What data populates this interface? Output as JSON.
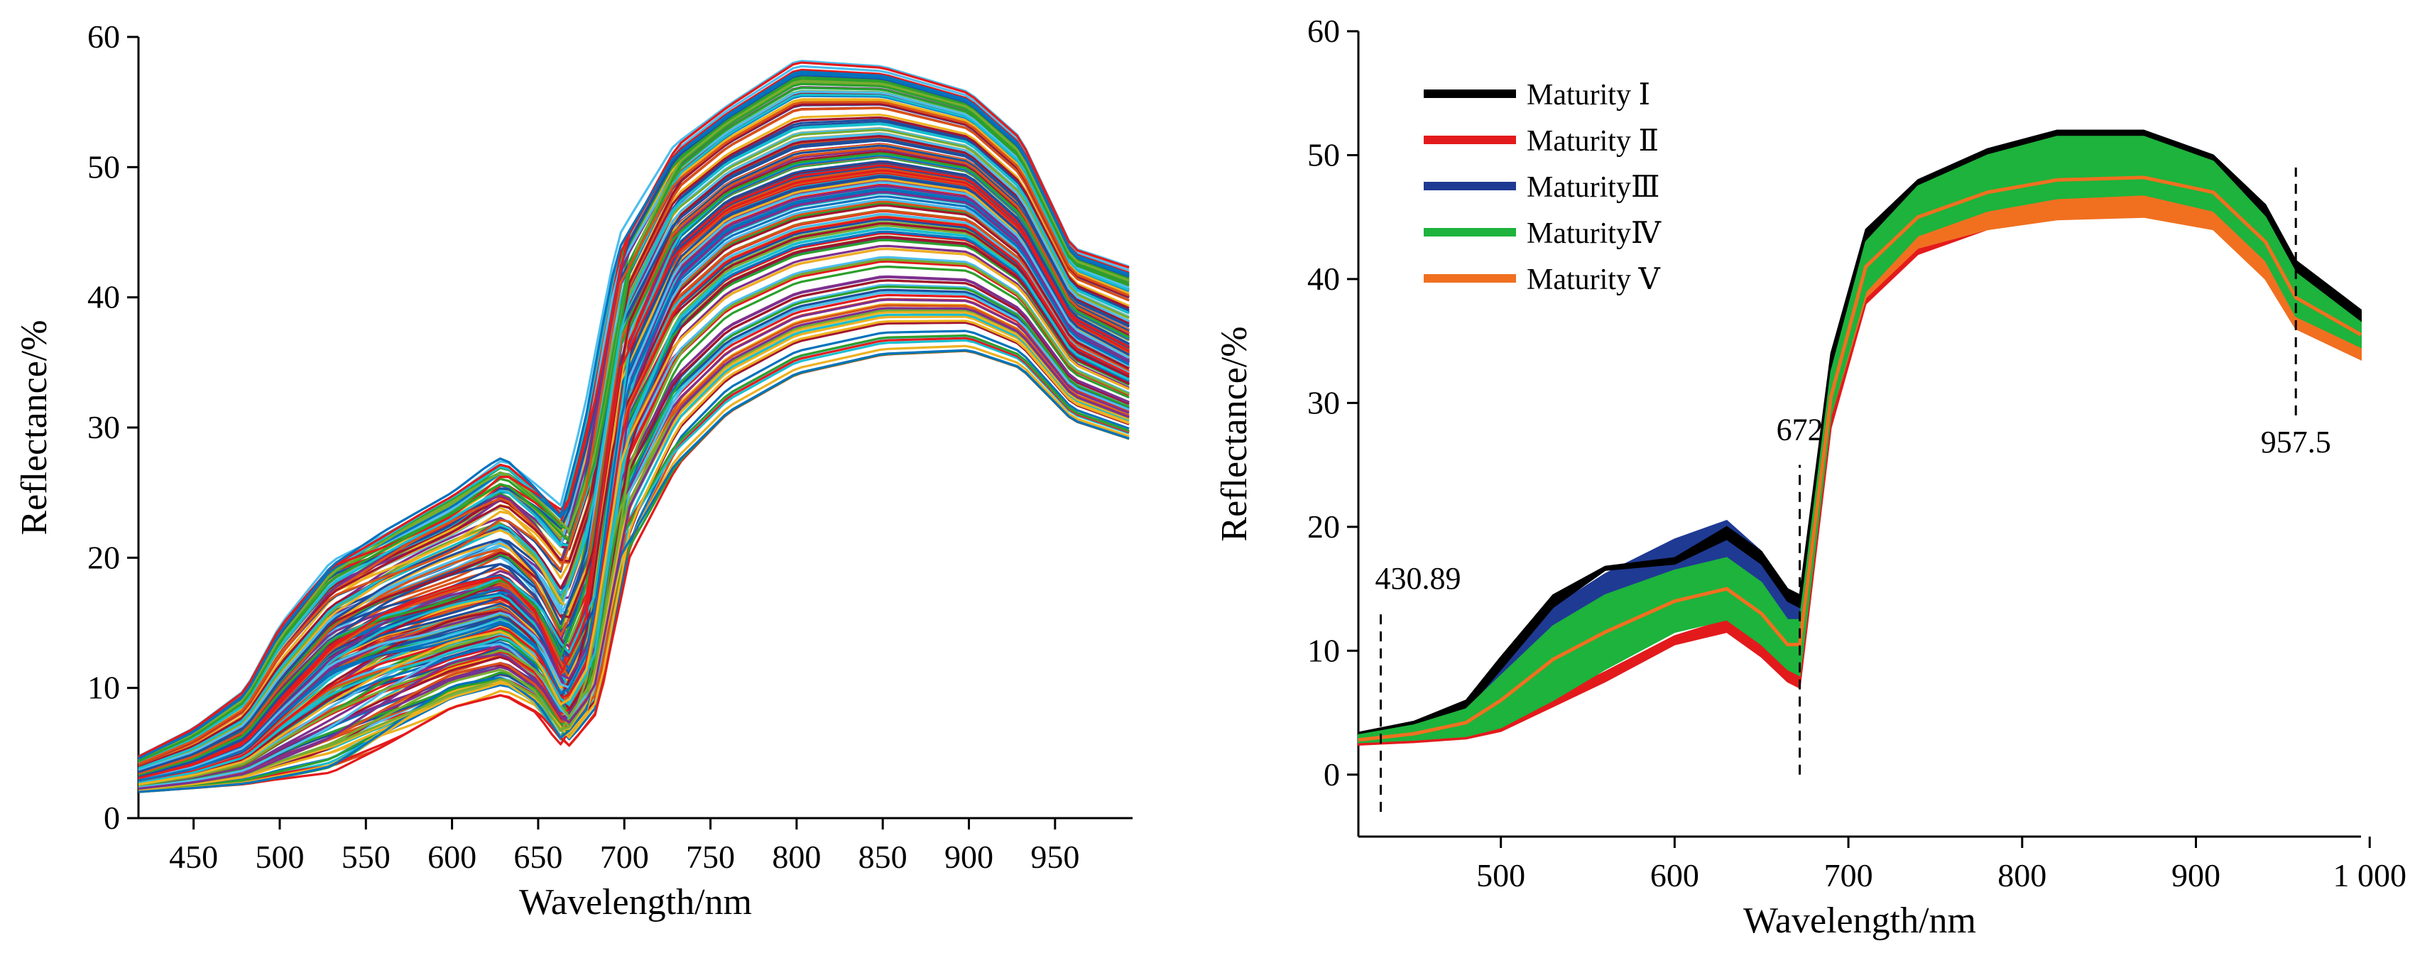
{
  "chart_data": [
    {
      "type": "line",
      "xlabel": "Wavelength/nm",
      "ylabel": "Reflectance/%",
      "xlim": [
        418,
        995
      ],
      "ylim": [
        0,
        60
      ],
      "xticks": [
        450,
        500,
        550,
        600,
        650,
        700,
        750,
        800,
        850,
        900,
        950
      ],
      "yticks": [
        0,
        10,
        20,
        30,
        40,
        50,
        60
      ],
      "grid": false,
      "series_count_approx": 200,
      "x": [
        418,
        450,
        480,
        500,
        530,
        560,
        600,
        630,
        650,
        665,
        680,
        700,
        730,
        760,
        800,
        850,
        900,
        930,
        960,
        995
      ],
      "envelope": {
        "median": [
          3.0,
          4.0,
          5.6,
          8.5,
          12.5,
          14.5,
          16.0,
          17.0,
          14.5,
          10.0,
          14.0,
          34.0,
          43.0,
          46.5,
          48.5,
          49.5,
          48.5,
          45.0,
          38.0,
          35.5
        ],
        "upper": [
          4.8,
          7.0,
          10.0,
          15.0,
          20.0,
          22.0,
          25.0,
          28.0,
          26.0,
          24.5,
          32.0,
          45.0,
          52.0,
          55.0,
          58.5,
          58.0,
          56.0,
          52.5,
          44.0,
          42.5
        ],
        "lower": [
          2.0,
          2.3,
          2.6,
          3.0,
          3.5,
          5.5,
          8.5,
          9.5,
          8.0,
          5.5,
          8.0,
          20.0,
          27.0,
          31.0,
          34.0,
          35.5,
          35.8,
          34.5,
          30.5,
          29.0
        ]
      },
      "palette": [
        "#0072BD",
        "#D95319",
        "#EDB120",
        "#7E2F8E",
        "#77AC30",
        "#4DBEEE",
        "#A2142F",
        "#E41A1C",
        "#1F4E9E",
        "#2CA02C",
        "#17BECF"
      ]
    },
    {
      "type": "area",
      "xlabel": "Wavelength/nm",
      "ylabel": "Reflectance/%",
      "xlim": [
        418,
        995
      ],
      "ylim": [
        -5,
        60
      ],
      "xticks": [
        500,
        600,
        700,
        800,
        900,
        1000
      ],
      "xtick_labels": [
        "500",
        "600",
        "700",
        "800",
        "900",
        "1 000"
      ],
      "yticks": [
        0,
        10,
        20,
        30,
        40,
        50,
        60
      ],
      "grid": false,
      "legend_position": "top-left",
      "x": [
        418,
        450,
        480,
        500,
        530,
        560,
        600,
        630,
        650,
        665,
        672,
        690,
        710,
        740,
        780,
        820,
        870,
        910,
        940,
        957.5,
        995
      ],
      "series": [
        {
          "name": "Maturity Ⅰ",
          "color": "#000000",
          "band": "upper",
          "lower": [
            3.0,
            3.6,
            5.2,
            8.5,
            13.5,
            16.5,
            17.0,
            19.0,
            17.0,
            14.0,
            13.5,
            32.0,
            42.0,
            46.5,
            49.5,
            51.5,
            51.5,
            49.5,
            45.0,
            40.5,
            36.5
          ],
          "upper": [
            3.4,
            4.3,
            6.0,
            9.5,
            14.5,
            16.8,
            17.5,
            20.0,
            18.0,
            15.0,
            14.5,
            34.0,
            44.0,
            48.0,
            50.5,
            52.0,
            52.0,
            50.0,
            46.0,
            41.5,
            37.5
          ]
        },
        {
          "name": "Maturity Ⅱ",
          "color": "#E31A1C",
          "band": "lower",
          "lower": [
            2.4,
            2.6,
            2.9,
            3.5,
            5.5,
            7.5,
            10.5,
            11.5,
            9.5,
            7.5,
            7.0,
            28.0,
            38.0,
            42.0,
            44.0,
            45.0,
            45.5,
            44.5,
            40.0,
            36.0,
            33.5
          ],
          "upper": [
            2.9,
            3.1,
            3.5,
            4.4,
            6.3,
            8.3,
            11.2,
            12.5,
            10.5,
            8.5,
            8.0,
            29.5,
            39.5,
            43.5,
            45.5,
            46.5,
            46.8,
            46.0,
            41.5,
            37.5,
            35.0
          ]
        },
        {
          "name": "MaturityⅢ",
          "color": "#1F3A93",
          "band": "outer",
          "lower": [
            2.6,
            2.8,
            3.1,
            3.8,
            6.5,
            9.0,
            12.5,
            13.5,
            11.5,
            9.5,
            9.0,
            30.0,
            40.0,
            45.0,
            48.0,
            50.0,
            50.0,
            48.0,
            43.5,
            39.0,
            35.0
          ],
          "upper": [
            3.3,
            4.3,
            5.8,
            9.0,
            13.5,
            16.2,
            19.0,
            20.5,
            18.0,
            14.5,
            14.0,
            33.5,
            44.0,
            48.0,
            50.5,
            52.0,
            52.0,
            50.0,
            45.5,
            41.0,
            37.0
          ]
        },
        {
          "name": "MaturityⅣ",
          "color": "#1DB33C",
          "band": "middle",
          "lower": [
            2.6,
            2.8,
            3.1,
            3.8,
            6.0,
            8.5,
            11.5,
            12.5,
            10.5,
            8.5,
            8.0,
            29.0,
            39.0,
            43.5,
            45.5,
            46.5,
            46.8,
            45.5,
            41.5,
            37.0,
            34.5
          ],
          "upper": [
            3.2,
            4.0,
            5.3,
            8.0,
            12.0,
            14.5,
            16.5,
            17.5,
            15.5,
            12.5,
            12.5,
            32.5,
            43.0,
            47.5,
            50.0,
            51.5,
            51.5,
            49.5,
            45.0,
            40.5,
            36.5
          ]
        },
        {
          "name": "Maturity Ⅴ",
          "color": "#F07020",
          "band": "center",
          "mean": [
            2.8,
            3.3,
            4.2,
            6.0,
            9.3,
            11.5,
            14.0,
            15.0,
            13.0,
            10.5,
            10.5,
            30.5,
            41.0,
            45.0,
            47.0,
            48.0,
            48.2,
            47.0,
            43.0,
            38.5,
            35.5
          ],
          "lower": [
            2.6,
            2.8,
            3.1,
            3.8,
            6.2,
            8.7,
            11.7,
            12.7,
            10.7,
            8.7,
            8.2,
            29.0,
            38.5,
            42.5,
            44.0,
            44.8,
            45.0,
            44.0,
            40.0,
            36.0,
            33.5
          ],
          "upper": [
            2.9,
            3.4,
            4.4,
            6.3,
            9.6,
            11.8,
            14.3,
            15.3,
            13.3,
            10.8,
            10.8,
            30.8,
            41.3,
            45.3,
            47.3,
            48.3,
            48.5,
            47.3,
            43.3,
            38.8,
            35.8
          ]
        }
      ],
      "annotations": [
        {
          "x": 430.89,
          "label": "430.89",
          "y_from": -3,
          "y_to": 13,
          "text_y": 15
        },
        {
          "x": 672,
          "label": "672",
          "y_from": 0,
          "y_to": 25,
          "text_y": 27
        },
        {
          "x": 957.5,
          "label": "957.5",
          "y_from": 29,
          "y_to": 49,
          "text_y": 26
        }
      ]
    }
  ]
}
